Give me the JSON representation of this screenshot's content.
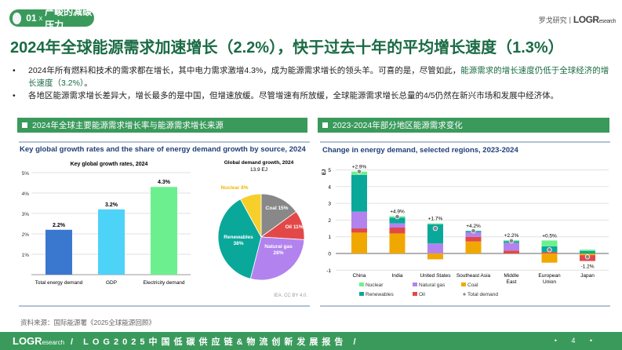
{
  "header": {
    "section_num": "01",
    "section_sep": "x",
    "section_title": "严峻的减碳压力",
    "brand_cn": "罗戈研究",
    "brand_logo": "LOGResearch"
  },
  "title": "2024年全球能源需求加速增长（2.2%），快于过去十年的平均增长速度（1.3%）",
  "bullets": [
    {
      "text": "2024年所有燃料和技术的需求都在增长，其中电力需求激增4.3%，成为能源需求增长的领头羊。可喜的是，尽管如此，",
      "highlight": "能源需求的增长速度仍低于全球经济的增长速度（3.2%）",
      "end": "。"
    },
    {
      "text": "各地区能源需求增长差异大，增长最多的是中国，但增速放缓。尽管增速有所放缓，全球能源需求增长总量的4/5仍然在新兴市场和发展中经济体。"
    }
  ],
  "panels": {
    "left_title": "2024年全球主要能源需求增长率与能源需求增长来源",
    "right_title": "2023-2024年部分地区能源需求变化"
  },
  "chart_data": [
    {
      "type": "bar",
      "title": "Key global growth rates and the share of energy demand growth by source, 2024",
      "subtitle": "Key global growth rates, 2024",
      "categories": [
        "Total energy demand",
        "GDP",
        "Electricity demand"
      ],
      "values": [
        2.2,
        3.2,
        4.3
      ],
      "labels": [
        "2.2%",
        "3.2%",
        "4.3%"
      ],
      "colors": [
        "#3a78d0",
        "#4dd2f8",
        "#6cf08f"
      ],
      "ylim": [
        0,
        5
      ],
      "yticks": [
        "1%",
        "2%",
        "3%",
        "4%",
        "5%"
      ]
    },
    {
      "type": "pie",
      "title": "Global demand growth, 2024",
      "subtitle": "13.9 EJ",
      "slices": [
        {
          "name": "Coal",
          "value": 15,
          "label": "Coal 15%",
          "color": "#888888"
        },
        {
          "name": "Oil",
          "value": 11,
          "label": "Oil 11%",
          "color": "#e34848"
        },
        {
          "name": "Natural gas",
          "value": 28,
          "label": "Natural gas 28%",
          "color": "#b283ee"
        },
        {
          "name": "Renewables",
          "value": 38,
          "label": "Renewables 38%",
          "color": "#0aa89a"
        },
        {
          "name": "Nuclear",
          "value": 8,
          "label": "Nuclear 8%",
          "color": "#f7cf2a"
        }
      ],
      "credit": "IEA. CC BY 4.0."
    },
    {
      "type": "bar",
      "stacked": true,
      "title": "Change in energy demand, selected regions, 2023-2024",
      "ylabel": "EJ",
      "ylim": [
        -1,
        5
      ],
      "yticks": [
        -1,
        0,
        1,
        2,
        3,
        4,
        5
      ],
      "categories": [
        "China",
        "India",
        "United States",
        "Southeast Asia",
        "Middle East",
        "European Union",
        "Japan"
      ],
      "series": [
        {
          "name": "Coal",
          "color": "#f0a800",
          "values": [
            1.25,
            1.2,
            -0.35,
            0.72,
            0,
            -0.55,
            -0.1
          ]
        },
        {
          "name": "Oil",
          "color": "#e34848",
          "values": [
            0.25,
            0.35,
            0,
            0.27,
            0.17,
            0.08,
            -0.35
          ]
        },
        {
          "name": "Natural gas",
          "color": "#b283ee",
          "values": [
            1.0,
            0.25,
            0.6,
            0.28,
            0.47,
            0,
            0
          ]
        },
        {
          "name": "Renewables",
          "color": "#0aa89a",
          "values": [
            2.2,
            0.35,
            1.15,
            0.08,
            0.1,
            0.35,
            0.15
          ]
        },
        {
          "name": "Nuclear",
          "color": "#6cf08f",
          "values": [
            0.2,
            0.08,
            0.05,
            0,
            0.05,
            0.35,
            0.08
          ]
        }
      ],
      "total_demand": [
        4.9,
        2.2,
        1.5,
        1.35,
        0.75,
        0.22,
        -0.2
      ],
      "growth_labels": [
        "+2.9%",
        "+4.9%",
        "+1.7%",
        "+4.2%",
        "+2.2%",
        "+0.5%",
        "-1.2%"
      ],
      "legend": [
        "Nuclear",
        "Natural gas",
        "Coal",
        "Renewables",
        "Oil",
        "Total demand"
      ]
    }
  ],
  "source": "资料来源：国际能源署《2025全球能源回顾》",
  "footer": {
    "logo": "LOGResearch",
    "text": "/ LOG2025中国低碳供应链&物流创新发展报告 /",
    "page": "• 4 •"
  }
}
